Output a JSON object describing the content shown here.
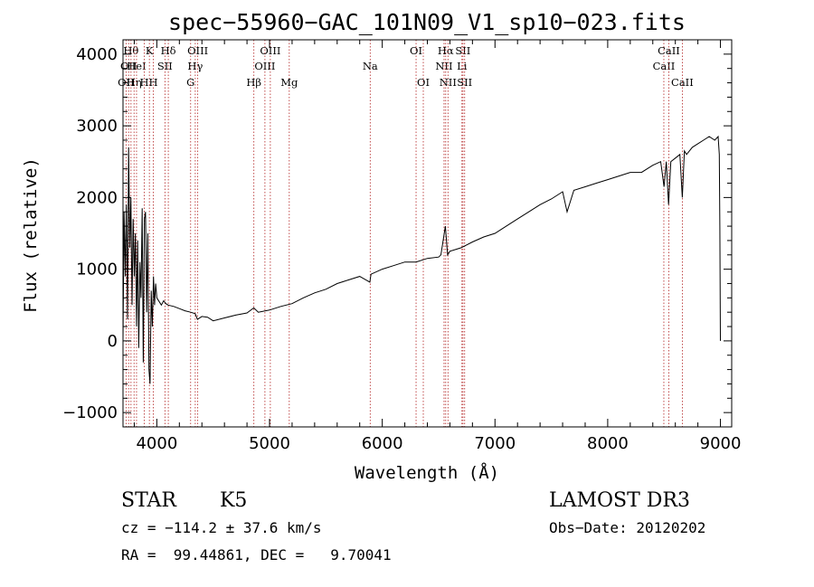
{
  "chart_data": {
    "type": "line",
    "title": "spec−55960−GAC_101N09_V1_sp10−023.fits",
    "xlabel": "Wavelength (Å)",
    "ylabel": "Flux (relative)",
    "xlim": [
      3700,
      9100
    ],
    "ylim": [
      -1200,
      4200
    ],
    "x_ticks": [
      4000,
      5000,
      6000,
      7000,
      8000,
      9000
    ],
    "x_tick_labels": [
      "4000",
      "5000",
      "6000",
      "7000",
      "8000",
      "9000"
    ],
    "y_ticks": [
      -1000,
      0,
      1000,
      2000,
      3000,
      4000
    ],
    "y_tick_labels": [
      "−1000",
      "0",
      "1000",
      "2000",
      "3000",
      "4000"
    ],
    "series": [
      {
        "name": "spectrum",
        "x": [
          3700,
          3710,
          3720,
          3730,
          3740,
          3750,
          3760,
          3770,
          3780,
          3790,
          3800,
          3810,
          3820,
          3830,
          3840,
          3850,
          3860,
          3870,
          3880,
          3890,
          3900,
          3910,
          3920,
          3930,
          3940,
          3950,
          3960,
          3970,
          3980,
          3990,
          4000,
          4020,
          4040,
          4060,
          4080,
          4100,
          4150,
          4200,
          4250,
          4300,
          4340,
          4360,
          4400,
          4450,
          4500,
          4600,
          4700,
          4800,
          4860,
          4900,
          5000,
          5100,
          5200,
          5300,
          5400,
          5500,
          5600,
          5700,
          5800,
          5890,
          5900,
          6000,
          6100,
          6200,
          6300,
          6400,
          6500,
          6520,
          6560,
          6580,
          6600,
          6700,
          6800,
          6900,
          7000,
          7100,
          7200,
          7300,
          7400,
          7500,
          7600,
          7640,
          7700,
          7800,
          7900,
          8000,
          8100,
          8200,
          8300,
          8400,
          8470,
          8500,
          8520,
          8540,
          8560,
          8600,
          8640,
          8662,
          8680,
          8700,
          8750,
          8800,
          8850,
          8900,
          8950,
          8980,
          8990,
          8995,
          9000
        ],
        "y": [
          0,
          1800,
          900,
          1900,
          300,
          2700,
          1300,
          2000,
          500,
          1700,
          900,
          1500,
          200,
          1400,
          -100,
          1100,
          600,
          1850,
          -300,
          1700,
          1800,
          400,
          1500,
          -400,
          -600,
          700,
          200,
          900,
          500,
          800,
          600,
          550,
          500,
          560,
          520,
          500,
          480,
          450,
          420,
          400,
          380,
          300,
          340,
          330,
          280,
          320,
          360,
          390,
          460,
          400,
          430,
          480,
          520,
          600,
          670,
          720,
          800,
          850,
          900,
          820,
          930,
          1000,
          1050,
          1100,
          1100,
          1150,
          1170,
          1200,
          1600,
          1200,
          1250,
          1300,
          1380,
          1450,
          1500,
          1600,
          1700,
          1800,
          1900,
          1980,
          2080,
          1800,
          2100,
          2150,
          2200,
          2250,
          2300,
          2350,
          2350,
          2450,
          2500,
          2150,
          2500,
          1900,
          2500,
          2550,
          2600,
          2000,
          2650,
          2600,
          2700,
          2750,
          2800,
          2850,
          2800,
          2850,
          2600,
          1600,
          0
        ]
      }
    ],
    "line_markers": [
      {
        "x": 3727,
        "label": "OII",
        "row": 2
      },
      {
        "x": 3750,
        "label": "OII",
        "row": 1
      },
      {
        "x": 3771,
        "label": "Hθ",
        "row": 0
      },
      {
        "x": 3798,
        "label": "Hη",
        "row": 2
      },
      {
        "x": 3820,
        "label": "HeI",
        "row": 1
      },
      {
        "x": 3889,
        "label": "H",
        "row": 2
      },
      {
        "x": 3934,
        "label": "K",
        "row": 0
      },
      {
        "x": 3969,
        "label": "H",
        "row": 2
      },
      {
        "x": 4072,
        "label": "SII",
        "row": 1
      },
      {
        "x": 4102,
        "label": "Hδ",
        "row": 0
      },
      {
        "x": 4300,
        "label": "G",
        "row": 2
      },
      {
        "x": 4341,
        "label": "Hγ",
        "row": 1
      },
      {
        "x": 4363,
        "label": "OIII",
        "row": 0
      },
      {
        "x": 4861,
        "label": "Hβ",
        "row": 2
      },
      {
        "x": 4959,
        "label": "OIII",
        "row": 1
      },
      {
        "x": 5007,
        "label": "OIII",
        "row": 0
      },
      {
        "x": 5175,
        "label": "Mg",
        "row": 2
      },
      {
        "x": 5893,
        "label": "Na",
        "row": 1
      },
      {
        "x": 6300,
        "label": "OI",
        "row": 0
      },
      {
        "x": 6364,
        "label": "OI",
        "row": 2
      },
      {
        "x": 6548,
        "label": "NII",
        "row": 1
      },
      {
        "x": 6563,
        "label": "Hα",
        "row": 0
      },
      {
        "x": 6583,
        "label": "NII",
        "row": 2
      },
      {
        "x": 6707,
        "label": "Li",
        "row": 1
      },
      {
        "x": 6716,
        "label": "SII",
        "row": 0
      },
      {
        "x": 6731,
        "label": "SII",
        "row": 2
      },
      {
        "x": 8498,
        "label": "CaII",
        "row": 1
      },
      {
        "x": 8542,
        "label": "CaII",
        "row": 0
      },
      {
        "x": 8662,
        "label": "CaII",
        "row": 2
      }
    ]
  },
  "info": {
    "object_class": "STAR",
    "subclass": "K5",
    "survey": "LAMOST DR3",
    "cz": "cz = −114.2 ± 37.6 km/s",
    "obs_date": "Obs−Date: 20120202",
    "coords": "RA =  99.44861, DEC =   9.70041"
  },
  "colors": {
    "marker_line": "#b22222",
    "spectrum": "#000000",
    "axes": "#000000"
  }
}
